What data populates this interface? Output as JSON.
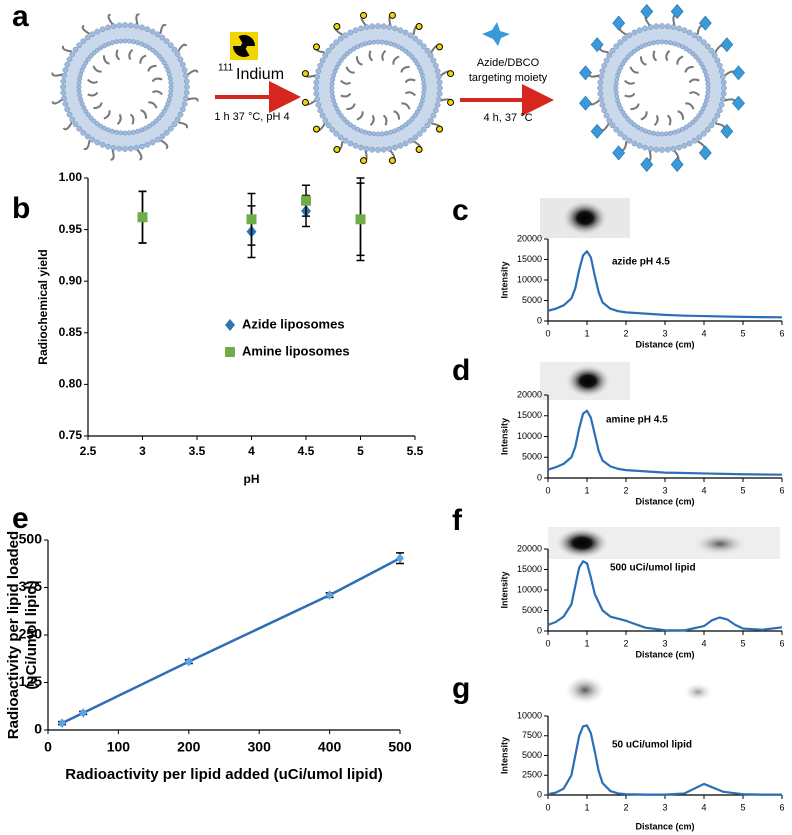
{
  "diagram": {
    "panel": "a",
    "isotope_mass": "111",
    "isotope": "Indium",
    "step1_conditions": "1 h 37 °C, pH 4",
    "reagent": [
      "Azide/DBCO",
      "targeting moiety"
    ],
    "step2_conditions": "4 h, 37 °C"
  },
  "chart_data": [
    {
      "panel": "b",
      "type": "scatter",
      "xlabel": "pH",
      "ylabel": "Radiochemical yield",
      "xlim": [
        2.5,
        5.5
      ],
      "xticks": [
        2.5,
        3,
        3.5,
        4,
        4.5,
        5,
        5.5
      ],
      "ylim": [
        0.75,
        1.0
      ],
      "yticks": [
        0.75,
        {
          "value": 0.8,
          "label": "0.80"
        },
        0.85,
        {
          "value": 0.9,
          "label": "0.90"
        },
        0.95,
        {
          "value": 1.0,
          "label": "1.00"
        }
      ],
      "x": [
        3,
        4,
        4.5,
        5
      ],
      "series": [
        {
          "name": "Azide liposomes",
          "color": "#2e75b6",
          "marker": "diamond",
          "values": [
            0.962,
            0.948,
            0.968,
            0.96
          ],
          "errors": [
            0.025,
            0.025,
            0.015,
            0.035
          ]
        },
        {
          "name": "Amine liposomes",
          "color": "#70ad47",
          "marker": "square",
          "values": [
            0.962,
            0.96,
            0.978,
            0.96
          ],
          "errors": [
            0.025,
            0.025,
            0.015,
            0.04
          ]
        }
      ]
    },
    {
      "panel": "c",
      "type": "line",
      "xlabel": "Distance (cm)",
      "ylabel": "Intensity",
      "annotation": "azide pH 4.5",
      "xlim": [
        0,
        6
      ],
      "xticks": [
        0,
        1,
        2,
        3,
        4,
        5,
        6
      ],
      "ylim": [
        0,
        20000
      ],
      "yticks": [
        0,
        5000,
        10000,
        15000,
        20000
      ],
      "x": [
        0,
        0.2,
        0.4,
        0.6,
        0.7,
        0.8,
        0.9,
        1,
        1.1,
        1.2,
        1.3,
        1.4,
        1.6,
        1.8,
        2,
        2.5,
        3,
        3.5,
        4,
        4.5,
        5,
        5.5,
        6
      ],
      "series": [
        {
          "color": "#2c6fb7",
          "values": [
            2500,
            3000,
            3800,
            5500,
            8000,
            12500,
            16000,
            17000,
            15500,
            11000,
            7000,
            4500,
            3000,
            2400,
            2100,
            1800,
            1500,
            1300,
            1200,
            1100,
            1000,
            950,
            900
          ]
        }
      ]
    },
    {
      "panel": "d",
      "type": "line",
      "xlabel": "Distance (cm)",
      "ylabel": "Intensity",
      "annotation": "amine pH 4.5",
      "xlim": [
        0,
        6
      ],
      "xticks": [
        0,
        1,
        2,
        3,
        4,
        5,
        6
      ],
      "ylim": [
        0,
        20000
      ],
      "yticks": [
        0,
        5000,
        10000,
        15000,
        20000
      ],
      "x": [
        0,
        0.2,
        0.4,
        0.6,
        0.7,
        0.8,
        0.9,
        1,
        1.1,
        1.2,
        1.3,
        1.4,
        1.6,
        1.8,
        2,
        2.5,
        3,
        3.5,
        4,
        4.5,
        5,
        5.5,
        6
      ],
      "series": [
        {
          "color": "#2c6fb7",
          "values": [
            2000,
            2600,
            3400,
            5000,
            7500,
            12000,
            15500,
            16200,
            14500,
            10500,
            6500,
            4200,
            2800,
            2200,
            1900,
            1600,
            1300,
            1200,
            1100,
            1000,
            900,
            850,
            800
          ]
        }
      ]
    },
    {
      "panel": "e",
      "type": "line",
      "xlabel": "Radioactivity per lipid added (uCi/umol lipid)",
      "ylabel": [
        "Radioactivity per lipid loaded",
        "(uCi/umol lipid)"
      ],
      "xlim": [
        0,
        500
      ],
      "xticks": [
        0,
        100,
        200,
        300,
        400,
        500
      ],
      "ylim": [
        0,
        500
      ],
      "yticks": [
        0,
        125,
        250,
        375,
        500
      ],
      "x": [
        20,
        50,
        200,
        400,
        500
      ],
      "series": [
        {
          "color": "#2c6fb7",
          "marker": "diamond",
          "values": [
            18,
            45,
            180,
            355,
            452
          ],
          "errors": [
            4,
            4,
            5,
            6,
            14
          ]
        }
      ]
    },
    {
      "panel": "f",
      "type": "line",
      "xlabel": "Distance (cm)",
      "ylabel": "Intensity",
      "annotation": "500 uCi/umol lipid",
      "xlim": [
        0,
        6
      ],
      "xticks": [
        0,
        1,
        2,
        3,
        4,
        5,
        6
      ],
      "ylim": [
        0,
        20000
      ],
      "yticks": [
        0,
        5000,
        10000,
        15000,
        20000
      ],
      "x": [
        0,
        0.2,
        0.4,
        0.6,
        0.7,
        0.8,
        0.9,
        1,
        1.1,
        1.2,
        1.4,
        1.6,
        1.8,
        2,
        2.2,
        2.5,
        3,
        3.5,
        4,
        4.2,
        4.4,
        4.6,
        4.8,
        5,
        5.5,
        6
      ],
      "series": [
        {
          "color": "#2c6fb7",
          "values": [
            1500,
            2200,
            3500,
            6500,
            11000,
            15500,
            17000,
            16500,
            13000,
            9000,
            5000,
            3500,
            3000,
            2500,
            1800,
            800,
            200,
            150,
            1200,
            2600,
            3300,
            2800,
            1500,
            600,
            300,
            900
          ]
        }
      ]
    },
    {
      "panel": "g",
      "type": "line",
      "xlabel": "Distance (cm)",
      "ylabel": "Intensity",
      "annotation": "50 uCi/umol lipid",
      "xlim": [
        0,
        6
      ],
      "xticks": [
        0,
        1,
        2,
        3,
        4,
        5,
        6
      ],
      "ylim": [
        0,
        10000
      ],
      "yticks": [
        0,
        2500,
        5000,
        7500,
        10000
      ],
      "x": [
        0,
        0.2,
        0.4,
        0.6,
        0.7,
        0.8,
        0.9,
        1,
        1.1,
        1.2,
        1.3,
        1.4,
        1.6,
        1.8,
        2,
        2.5,
        3,
        3.5,
        4,
        4.5,
        5,
        5.5,
        6
      ],
      "series": [
        {
          "color": "#2c6fb7",
          "values": [
            100,
            300,
            800,
            2500,
            5000,
            7500,
            8700,
            8800,
            7800,
            5500,
            3000,
            1500,
            500,
            200,
            100,
            50,
            50,
            200,
            1400,
            400,
            100,
            50,
            50
          ]
        }
      ]
    }
  ]
}
